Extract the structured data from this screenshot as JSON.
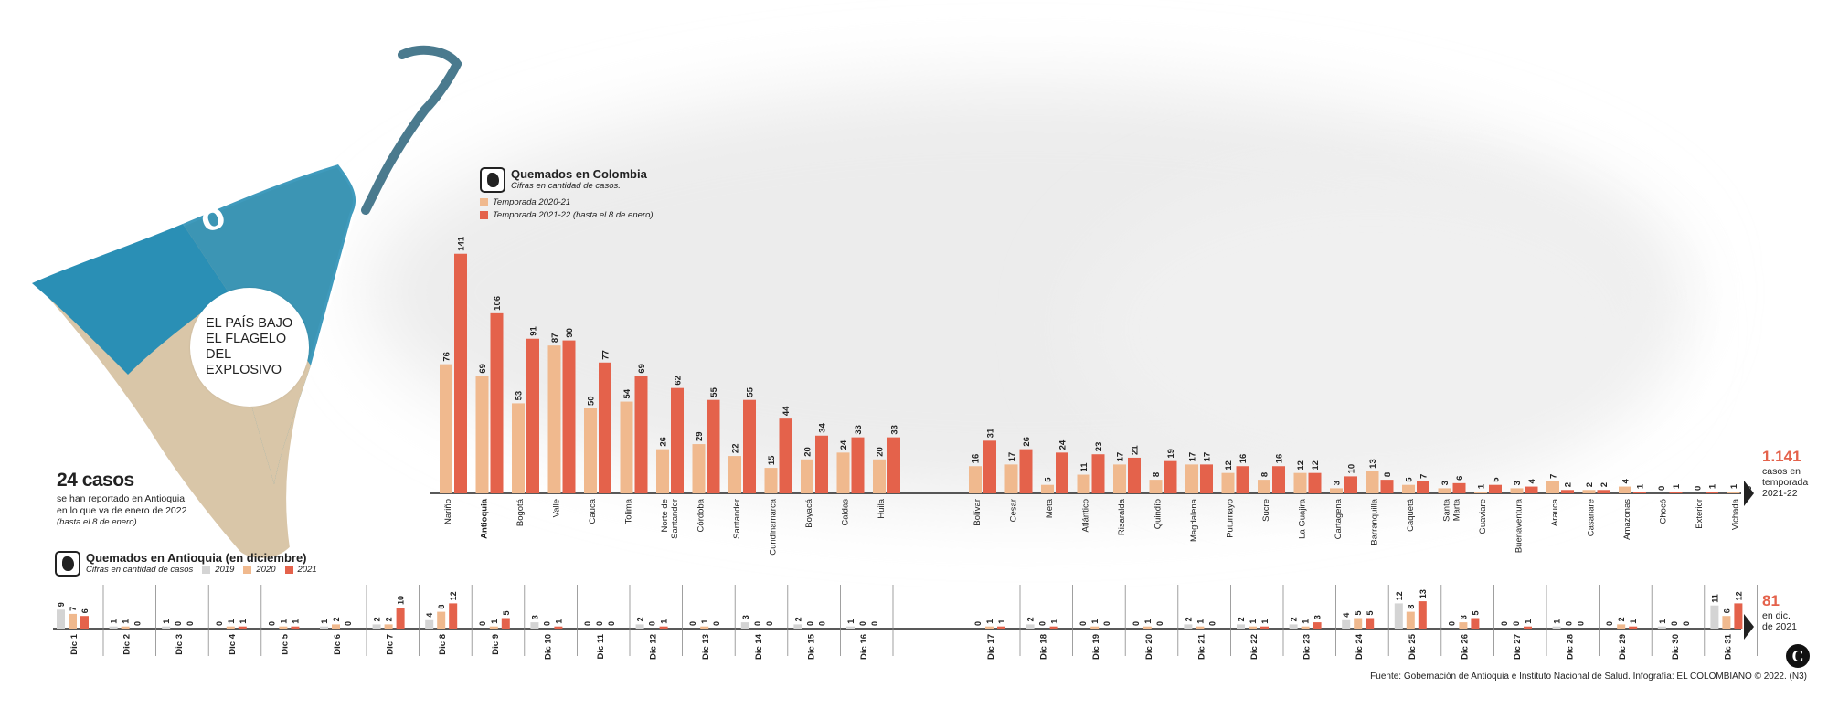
{
  "hero": {
    "label": "EL PAÍS BAJO\nEL FLAGELO\nDEL EXPLOSIVO"
  },
  "kpi": {
    "big": "24 casos",
    "sub": "se han reportado en Antioquia en lo que va de enero de 2022",
    "note": "(hasta el 8 de enero)."
  },
  "colors": {
    "c2019": "#d4d4d4",
    "c2020": "#f0b98e",
    "c2021": "#e4624b",
    "axis": "#222222"
  },
  "legend_colombia": {
    "title": "Quemados en Colombia",
    "subtitle": "Cifras en cantidad de casos.",
    "items": [
      "Temporada 2020-21",
      "Temporada 2021-22 (hasta el 8 de enero)"
    ]
  },
  "legend_antioquia": {
    "title": "Quemados en Antioquia (en diciembre)",
    "subtitle": "Cifras en cantidad de casos",
    "items": [
      "2019",
      "2020",
      "2021"
    ]
  },
  "totals": {
    "colombia_value": "1.141",
    "colombia_label": "casos en\ntemporada\n2021-22",
    "antioquia_value": "81",
    "antioquia_label": "en dic.\nde 2021"
  },
  "source": "Fuente: Gobernación de Antioquia e Instituto Nacional de Salud. Infografía: EL COLOMBIANO © 2022. (N3)",
  "logo": "C",
  "chart_data": [
    {
      "type": "bar",
      "title": "Quemados en Colombia",
      "categories": [
        "Nariño",
        "Antioquia",
        "Bogotá",
        "Valle",
        "Cauca",
        "Tolima",
        "Norte de Santander",
        "Córdoba",
        "Santander",
        "Cundinamarca",
        "Boyacá",
        "Caldas",
        "Huila",
        "Bolívar",
        "Cesar",
        "Meta",
        "Atlántico",
        "Risaralda",
        "Quindío",
        "Magdalena",
        "Putumayo",
        "Sucre",
        "La Guajira",
        "Cartagena",
        "Barranquilla",
        "Caquetá",
        "Santa Marta",
        "Guaviare",
        "Buenaventura",
        "Arauca",
        "Casanare",
        "Amazonas",
        "Chocó",
        "Exterior",
        "Vichada"
      ],
      "series": [
        {
          "name": "Temporada 2020-21",
          "values": [
            76,
            69,
            53,
            87,
            50,
            54,
            26,
            29,
            22,
            15,
            20,
            24,
            20,
            16,
            17,
            5,
            11,
            17,
            8,
            17,
            12,
            8,
            12,
            3,
            13,
            5,
            3,
            1,
            3,
            7,
            2,
            4,
            0,
            0,
            1
          ]
        },
        {
          "name": "Temporada 2021-22 (hasta el 8 de enero)",
          "values": [
            141,
            106,
            91,
            90,
            77,
            69,
            62,
            55,
            55,
            44,
            34,
            33,
            33,
            31,
            26,
            24,
            23,
            21,
            19,
            17,
            16,
            16,
            12,
            10,
            8,
            7,
            6,
            5,
            4,
            2,
            2,
            1,
            1,
            1,
            0
          ]
        }
      ]
    },
    {
      "type": "bar",
      "title": "Quemados en Antioquia (en diciembre)",
      "categories": [
        "Dic 1",
        "Dic 2",
        "Dic 3",
        "Dic 4",
        "Dic 5",
        "Dic 6",
        "Dic 7",
        "Dic 8",
        "Dic 9",
        "Dic 10",
        "Dic 11",
        "Dic 12",
        "Dic 13",
        "Dic 14",
        "Dic 15",
        "Dic 16",
        "Dic 17",
        "Dic 18",
        "Dic 19",
        "Dic 20",
        "Dic 21",
        "Dic 22",
        "Dic 23",
        "Dic 24",
        "Dic 25",
        "Dic 26",
        "Dic 27",
        "Dic 28",
        "Dic 29",
        "Dic 30",
        "Dic 31"
      ],
      "series": [
        {
          "name": "2019",
          "values": [
            9,
            1,
            1,
            0,
            0,
            1,
            2,
            4,
            0,
            3,
            0,
            2,
            0,
            3,
            2,
            1,
            0,
            2,
            0,
            0,
            2,
            2,
            2,
            4,
            12,
            0,
            0,
            1,
            0,
            1,
            11
          ]
        },
        {
          "name": "2020",
          "values": [
            7,
            1,
            0,
            1,
            1,
            2,
            2,
            8,
            1,
            0,
            0,
            0,
            1,
            0,
            0,
            0,
            1,
            0,
            1,
            1,
            1,
            1,
            1,
            5,
            8,
            3,
            0,
            0,
            2,
            0,
            6
          ]
        },
        {
          "name": "2021",
          "values": [
            6,
            0,
            0,
            1,
            1,
            0,
            10,
            12,
            5,
            1,
            0,
            1,
            0,
            0,
            0,
            0,
            1,
            1,
            0,
            0,
            0,
            1,
            3,
            5,
            13,
            5,
            1,
            0,
            1,
            0,
            12
          ]
        }
      ]
    }
  ]
}
